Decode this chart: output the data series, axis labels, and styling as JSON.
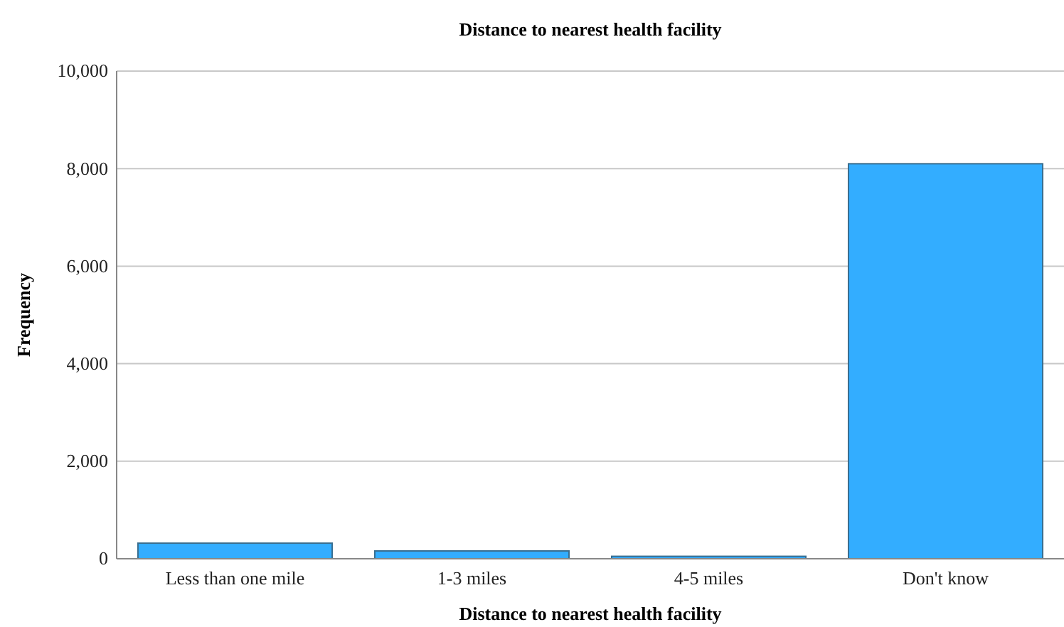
{
  "chart_data": {
    "type": "bar",
    "title": "Distance to nearest health facility",
    "xlabel": "Distance to nearest health facility",
    "ylabel": "Frequency",
    "categories": [
      "Less than one mile",
      "1-3 miles",
      "4-5 miles",
      "Don't know"
    ],
    "values": [
      320,
      160,
      50,
      8100
    ],
    "color": "#33adff",
    "ylim": [
      0,
      10000
    ],
    "yticks": [
      {
        "value": 0,
        "label": "0"
      },
      {
        "value": 2000,
        "label": "2,000"
      },
      {
        "value": 4000,
        "label": "4,000"
      },
      {
        "value": 6000,
        "label": "6,000"
      },
      {
        "value": 8000,
        "label": "8,000"
      },
      {
        "value": 10000,
        "label": "10,000"
      }
    ],
    "grid": "y"
  }
}
